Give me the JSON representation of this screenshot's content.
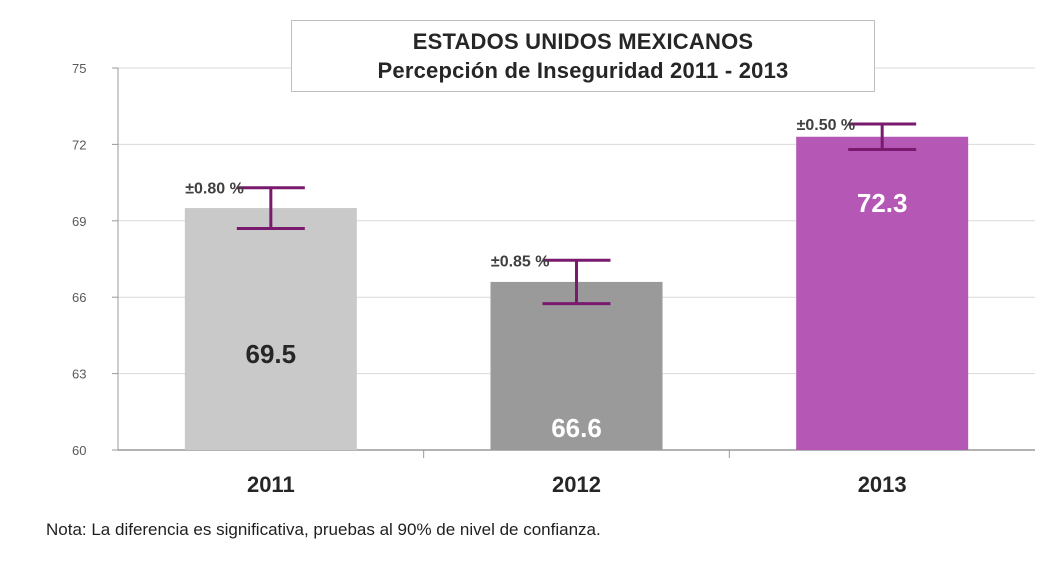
{
  "chart_data": {
    "type": "bar",
    "title": "ESTADOS UNIDOS MEXICANOS",
    "subtitle": "Percepción de Inseguridad 2011 - 2013",
    "categories": [
      "2011",
      "2012",
      "2013"
    ],
    "values": [
      69.5,
      66.6,
      72.3
    ],
    "value_labels": [
      "69.5",
      "66.6",
      "72.3"
    ],
    "error_margins": [
      0.8,
      0.85,
      0.5
    ],
    "error_labels": [
      "±0.80 %",
      "±0.85 %",
      "±0.50 %"
    ],
    "bar_colors": [
      "#c9c9c9",
      "#9a9a9a",
      "#b558b5"
    ],
    "value_label_colors": [
      "#262626",
      "#ffffff",
      "#ffffff"
    ],
    "error_bar_color": "#7a1a6e",
    "ylim": [
      60,
      75
    ],
    "yticks": [
      60,
      63,
      66,
      69,
      72,
      75
    ],
    "grid": true,
    "xlabel": "",
    "ylabel": ""
  },
  "note": "Nota: La diferencia es significativa, pruebas al 90% de nivel de confianza."
}
